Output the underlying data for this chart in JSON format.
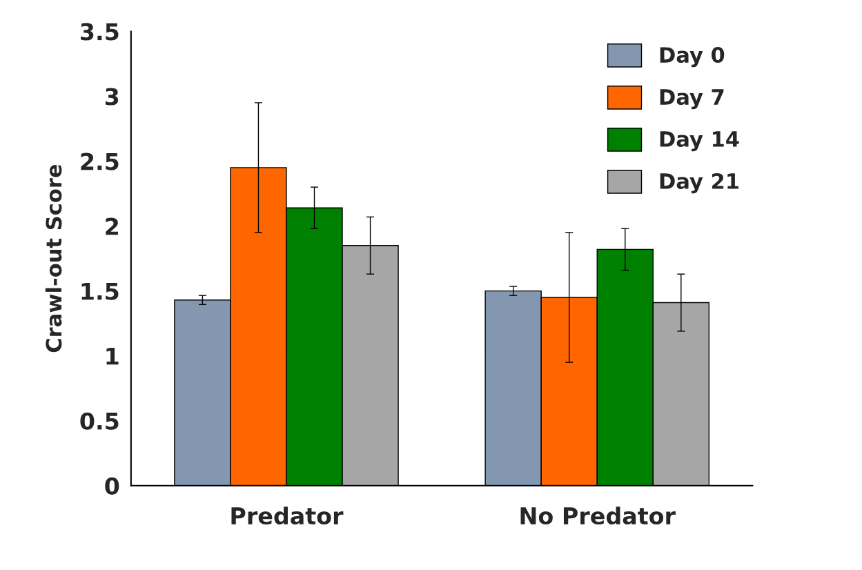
{
  "chart_data": {
    "type": "bar",
    "ylabel": "Crawl-out Score",
    "categories": [
      "Predator",
      "No Predator"
    ],
    "series": [
      {
        "name": "Day 0",
        "color": "#8497b0",
        "values": [
          1.43,
          1.5
        ],
        "errors": [
          0.035,
          0.035
        ]
      },
      {
        "name": "Day 7",
        "color": "#ff6600",
        "values": [
          2.45,
          1.45
        ],
        "errors": [
          0.5,
          0.5
        ]
      },
      {
        "name": "Day 14",
        "color": "#008000",
        "values": [
          2.14,
          1.82
        ],
        "errors": [
          0.16,
          0.16
        ]
      },
      {
        "name": "Day 21",
        "color": "#a6a6a6",
        "values": [
          1.85,
          1.41
        ],
        "errors": [
          0.22,
          0.22
        ]
      }
    ],
    "ylim": [
      0,
      3.5
    ],
    "yticks": [
      0,
      0.5,
      1,
      1.5,
      2,
      2.5,
      3,
      3.5
    ],
    "grid": false,
    "legend": "top right"
  }
}
